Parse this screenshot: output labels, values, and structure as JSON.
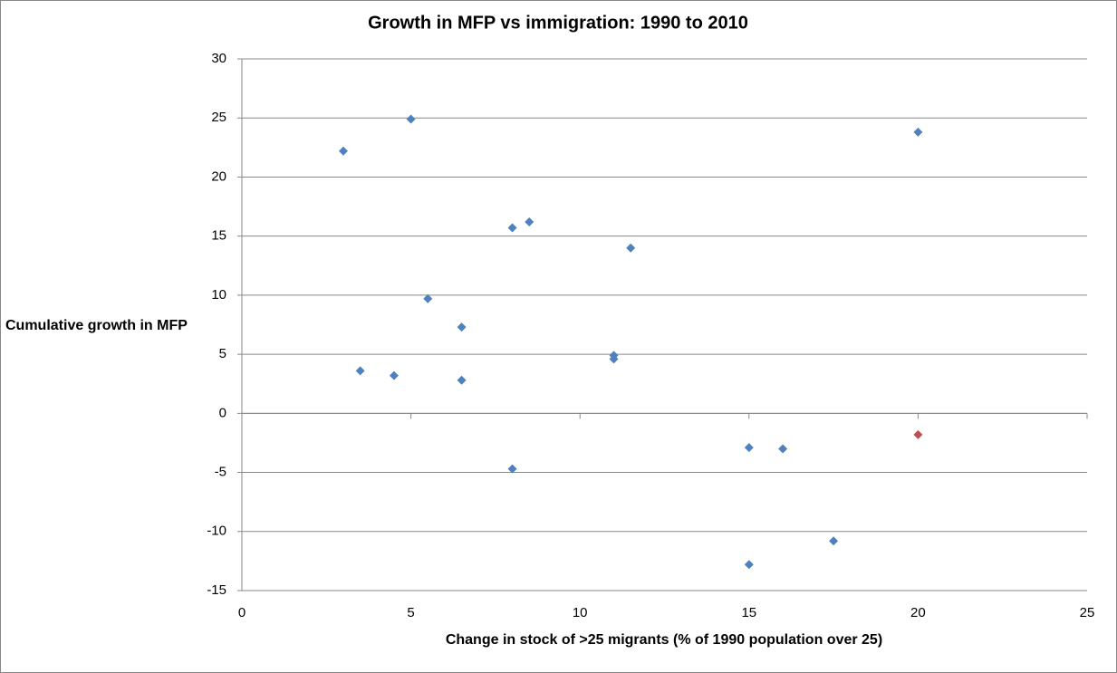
{
  "chart_data": {
    "type": "scatter",
    "title": "Growth in MFP vs immigration: 1990 to 2010",
    "xlabel": "Change in stock of >25 migrants (% of 1990 population over 25)",
    "ylabel": "Cumulative growth in MFP",
    "xlim": [
      0,
      25
    ],
    "xticks": [
      0,
      5,
      10,
      15,
      20,
      25
    ],
    "ylim": [
      -15,
      30
    ],
    "yticks": [
      -15,
      -10,
      -5,
      0,
      5,
      10,
      15,
      20,
      25,
      30
    ],
    "grid": true,
    "series": [
      {
        "color": "#4f81bd",
        "x": [
          3,
          5,
          20,
          8,
          8.5,
          11.5,
          5.5,
          6.5,
          3.5,
          4.5,
          6.5,
          11,
          11,
          8,
          15,
          16,
          15,
          17.5
        ],
        "values": [
          22.2,
          24.9,
          23.8,
          15.7,
          16.2,
          14.0,
          9.7,
          7.3,
          3.6,
          3.2,
          2.8,
          4.9,
          4.6,
          -4.7,
          -2.9,
          -3.0,
          -12.8,
          -10.8
        ]
      },
      {
        "color": "#c0504d",
        "x": [
          20
        ],
        "values": [
          -1.8
        ]
      }
    ]
  }
}
